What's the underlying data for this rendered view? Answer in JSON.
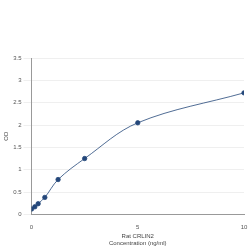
{
  "chart_data": {
    "type": "line",
    "x_label": [
      "Rat CRLIN2",
      "Concentration (ng/ml)"
    ],
    "y_label": "OD",
    "x": [
      0,
      0.156,
      0.312,
      0.625,
      1.25,
      2.5,
      5,
      10
    ],
    "values": [
      0.12,
      0.17,
      0.24,
      0.38,
      0.78,
      1.25,
      2.05,
      2.72
    ],
    "color": "#24477a",
    "marker": "circle",
    "xlim": [
      0,
      10
    ],
    "xticks": [
      0,
      5,
      10
    ],
    "ylim": [
      0,
      3.5
    ],
    "yticks": [
      0,
      0.5,
      1,
      1.5,
      2,
      2.5,
      3,
      3.5
    ],
    "grid": true
  }
}
